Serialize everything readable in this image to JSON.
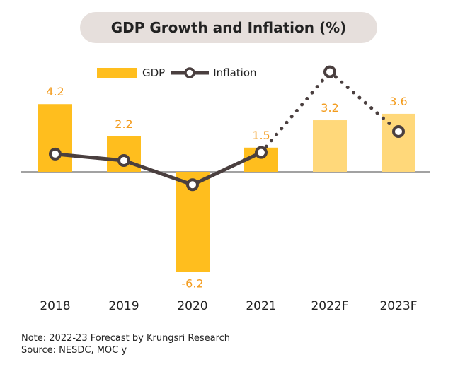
{
  "chart_data": {
    "type": "bar",
    "title": "GDP Growth and Inflation (%)",
    "categories": [
      "2018",
      "2019",
      "2020",
      "2021",
      "2022F",
      "2023F"
    ],
    "series": [
      {
        "name": "GDP",
        "type": "bar",
        "values": [
          4.2,
          2.2,
          -6.2,
          1.5,
          3.2,
          3.6
        ]
      },
      {
        "name": "Inflation",
        "type": "line",
        "values": [
          1.1,
          0.7,
          -0.8,
          1.2,
          6.2,
          2.5
        ]
      }
    ],
    "forecast_from_index": 4,
    "colors": {
      "gdp_actual": "#FFBE1E",
      "gdp_forecast": "#FFD87A",
      "inflation_line": "#4A3F3F",
      "data_label": "#F39B1C"
    },
    "legend_position": "top",
    "grid": false
  },
  "notes": {
    "note": "Note: 2022-23 Forecast by Krungsri Research",
    "source": "Source: NESDC, MOC y"
  }
}
